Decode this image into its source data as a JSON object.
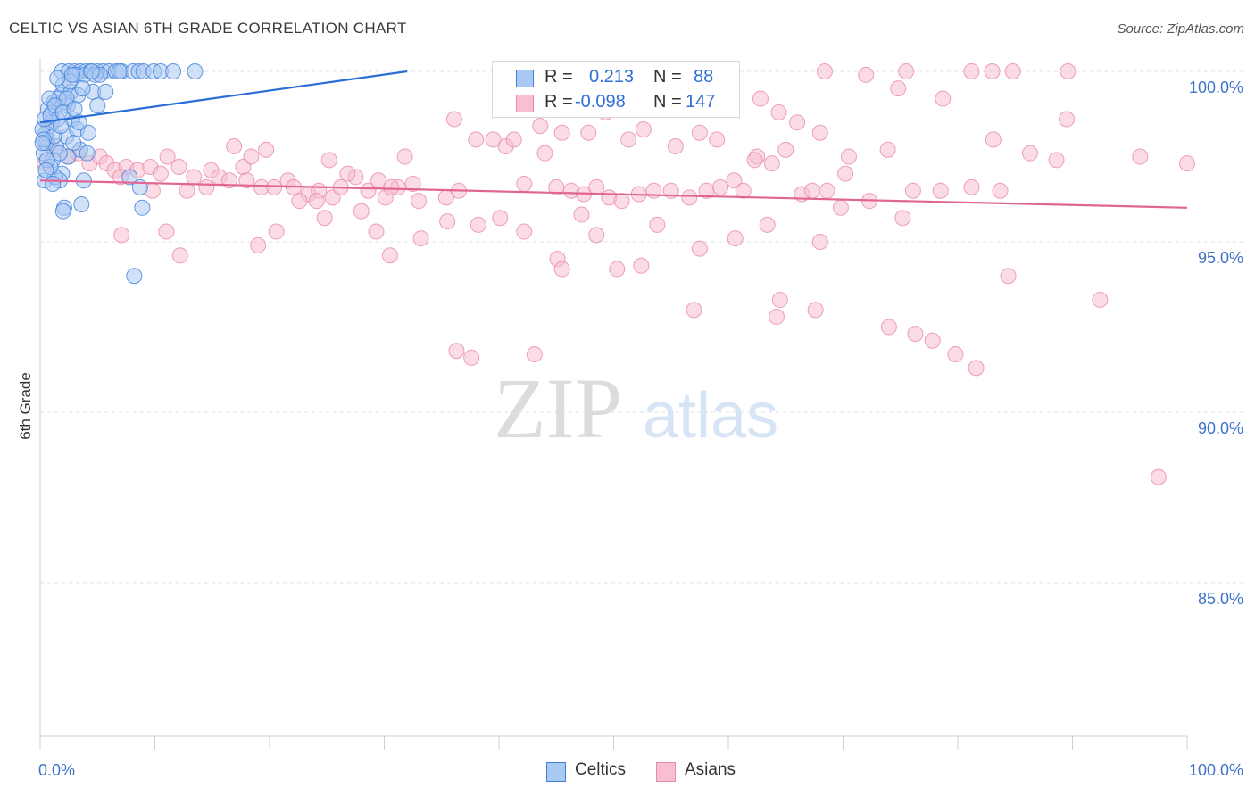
{
  "title": "CELTIC VS ASIAN 6TH GRADE CORRELATION CHART",
  "source": "Source: ZipAtlas.com",
  "watermark": {
    "zip": "ZIP",
    "atlas": "atlas"
  },
  "legend_stats": {
    "celtics": {
      "r_label": "R =",
      "r_value": "0.213",
      "n_label": "N =",
      "n_value": "88"
    },
    "asians": {
      "r_label": "R =",
      "r_value": "-0.098",
      "n_label": "N =",
      "n_value": "147"
    }
  },
  "bottom_legend": {
    "celtics": "Celtics",
    "asians": "Asians"
  },
  "colors": {
    "celtics_fill": "#a9c8f2",
    "celtics_stroke": "#3d7fd9",
    "celtics_line": "#2a6dd6",
    "asians_fill": "#f7bfd0",
    "asians_stroke": "#e889a8",
    "asians_line": "#e06593",
    "tick_text": "#3d73c9"
  },
  "chart_data": {
    "type": "scatter",
    "title": "CELTIC VS ASIAN 6TH GRADE CORRELATION CHART",
    "xlabel": "",
    "ylabel": "6th Grade",
    "xlim": [
      0,
      100
    ],
    "ylim": [
      80,
      101
    ],
    "x_ticks": [
      "0.0%",
      "100.0%"
    ],
    "y_ticks": [
      {
        "value": 100,
        "label": "100.0%"
      },
      {
        "value": 95,
        "label": "95.0%"
      },
      {
        "value": 90,
        "label": "90.0%"
      },
      {
        "value": 85,
        "label": "85.0%"
      }
    ],
    "grid": true,
    "series": [
      {
        "name": "Celtics",
        "trend": {
          "x": [
            0,
            32
          ],
          "y": [
            98.5,
            100
          ]
        },
        "points": [
          [
            0.4,
            96.8
          ],
          [
            0.6,
            98.0
          ],
          [
            0.8,
            98.4
          ],
          [
            0.3,
            97.6
          ],
          [
            0.5,
            98.2
          ],
          [
            1.0,
            98.8
          ],
          [
            1.2,
            99.1
          ],
          [
            1.5,
            98.6
          ],
          [
            1.8,
            99.3
          ],
          [
            2.0,
            99.6
          ],
          [
            2.4,
            99.0
          ],
          [
            2.7,
            99.4
          ],
          [
            1.1,
            97.4
          ],
          [
            1.4,
            97.8
          ],
          [
            1.9,
            97.0
          ],
          [
            2.3,
            98.1
          ],
          [
            2.8,
            98.6
          ],
          [
            3.2,
            98.3
          ],
          [
            3.5,
            97.7
          ],
          [
            4.2,
            98.2
          ],
          [
            4.6,
            99.4
          ],
          [
            5.0,
            99.0
          ],
          [
            5.7,
            99.4
          ],
          [
            2.1,
            96.0
          ],
          [
            1.7,
            96.8
          ],
          [
            1.3,
            96.9
          ],
          [
            0.9,
            97.2
          ],
          [
            3.6,
            96.1
          ],
          [
            3.8,
            96.8
          ],
          [
            2.0,
            95.9
          ],
          [
            7.8,
            96.9
          ],
          [
            8.7,
            96.6
          ],
          [
            8.9,
            96.0
          ],
          [
            8.2,
            94.0
          ],
          [
            1.9,
            100.0
          ],
          [
            2.5,
            100.0
          ],
          [
            3.0,
            100.0
          ],
          [
            3.5,
            100.0
          ],
          [
            4.0,
            100.0
          ],
          [
            4.4,
            100.0
          ],
          [
            5.0,
            100.0
          ],
          [
            5.5,
            100.0
          ],
          [
            6.0,
            100.0
          ],
          [
            6.6,
            100.0
          ],
          [
            7.1,
            100.0
          ],
          [
            8.1,
            100.0
          ],
          [
            8.6,
            100.0
          ],
          [
            9.0,
            100.0
          ],
          [
            9.9,
            100.0
          ],
          [
            10.5,
            100.0
          ],
          [
            11.6,
            100.0
          ],
          [
            13.5,
            100.0
          ],
          [
            3.1,
            99.9
          ],
          [
            3.9,
            99.9
          ],
          [
            4.8,
            99.9
          ],
          [
            2.2,
            99.1
          ],
          [
            2.6,
            99.7
          ],
          [
            3.3,
            99.3
          ],
          [
            0.7,
            98.9
          ],
          [
            1.6,
            99.2
          ],
          [
            0.2,
            98.3
          ],
          [
            0.5,
            97.9
          ],
          [
            1.0,
            98.5
          ],
          [
            2.9,
            97.9
          ],
          [
            4.1,
            97.6
          ],
          [
            0.8,
            99.2
          ],
          [
            1.2,
            98.1
          ],
          [
            5.2,
            99.9
          ],
          [
            6.9,
            100.0
          ],
          [
            2.8,
            99.9
          ],
          [
            3.7,
            99.5
          ],
          [
            4.5,
            100.0
          ],
          [
            1.5,
            99.8
          ],
          [
            2.3,
            99.2
          ],
          [
            0.4,
            98.6
          ],
          [
            0.6,
            97.4
          ],
          [
            1.8,
            98.4
          ],
          [
            2.4,
            97.5
          ],
          [
            0.3,
            98.0
          ],
          [
            0.9,
            98.7
          ],
          [
            1.3,
            99.0
          ],
          [
            2.0,
            98.8
          ],
          [
            3.0,
            98.9
          ],
          [
            1.1,
            96.7
          ],
          [
            0.5,
            97.1
          ],
          [
            3.4,
            98.5
          ],
          [
            0.2,
            97.9
          ],
          [
            1.7,
            97.6
          ]
        ]
      },
      {
        "name": "Asians",
        "trend": {
          "x": [
            0,
            100
          ],
          "y": [
            96.8,
            96.0
          ]
        },
        "points": [
          [
            0.4,
            97.3
          ],
          [
            1.2,
            97.7
          ],
          [
            2.5,
            97.5
          ],
          [
            3.3,
            97.6
          ],
          [
            4.3,
            97.3
          ],
          [
            5.2,
            97.5
          ],
          [
            5.8,
            97.3
          ],
          [
            6.5,
            97.1
          ],
          [
            7.5,
            97.2
          ],
          [
            8.5,
            97.1
          ],
          [
            9.6,
            97.2
          ],
          [
            10.5,
            97.0
          ],
          [
            12.1,
            97.2
          ],
          [
            13.4,
            96.9
          ],
          [
            14.9,
            97.1
          ],
          [
            15.6,
            96.9
          ],
          [
            16.5,
            96.8
          ],
          [
            17.7,
            97.2
          ],
          [
            18.0,
            96.8
          ],
          [
            19.3,
            96.6
          ],
          [
            20.4,
            96.6
          ],
          [
            21.6,
            96.8
          ],
          [
            22.1,
            96.6
          ],
          [
            23.4,
            96.4
          ],
          [
            24.3,
            96.5
          ],
          [
            25.5,
            96.3
          ],
          [
            26.2,
            96.6
          ],
          [
            27.5,
            96.9
          ],
          [
            28.6,
            96.5
          ],
          [
            29.5,
            96.8
          ],
          [
            30.1,
            96.3
          ],
          [
            31.2,
            96.6
          ],
          [
            32.5,
            96.7
          ],
          [
            7.0,
            96.9
          ],
          [
            9.8,
            96.5
          ],
          [
            11.1,
            97.5
          ],
          [
            12.8,
            96.5
          ],
          [
            14.5,
            96.6
          ],
          [
            16.9,
            97.8
          ],
          [
            18.4,
            97.5
          ],
          [
            19.7,
            97.7
          ],
          [
            22.6,
            96.2
          ],
          [
            24.1,
            96.2
          ],
          [
            25.2,
            97.4
          ],
          [
            26.8,
            97.0
          ],
          [
            30.6,
            96.6
          ],
          [
            31.8,
            97.5
          ],
          [
            33.0,
            96.2
          ],
          [
            35.4,
            96.3
          ],
          [
            36.5,
            96.5
          ],
          [
            38.0,
            98.0
          ],
          [
            39.5,
            98.0
          ],
          [
            40.6,
            97.8
          ],
          [
            42.2,
            96.7
          ],
          [
            43.6,
            98.4
          ],
          [
            45.0,
            96.6
          ],
          [
            46.3,
            96.5
          ],
          [
            47.4,
            96.4
          ],
          [
            48.5,
            96.6
          ],
          [
            49.6,
            96.3
          ],
          [
            50.7,
            96.2
          ],
          [
            52.2,
            96.4
          ],
          [
            53.5,
            96.5
          ],
          [
            55.0,
            96.5
          ],
          [
            56.6,
            96.3
          ],
          [
            58.1,
            96.5
          ],
          [
            59.3,
            96.6
          ],
          [
            60.5,
            96.8
          ],
          [
            61.3,
            96.5
          ],
          [
            62.5,
            97.5
          ],
          [
            63.8,
            97.3
          ],
          [
            65.0,
            97.7
          ],
          [
            66.4,
            96.4
          ],
          [
            67.3,
            96.5
          ],
          [
            68.6,
            96.5
          ],
          [
            69.8,
            96.0
          ],
          [
            70.2,
            97.0
          ],
          [
            72.3,
            96.2
          ],
          [
            73.9,
            97.7
          ],
          [
            76.1,
            96.5
          ],
          [
            78.5,
            96.5
          ],
          [
            81.2,
            96.6
          ],
          [
            83.7,
            96.5
          ],
          [
            36.1,
            98.6
          ],
          [
            41.3,
            98.0
          ],
          [
            44.0,
            97.6
          ],
          [
            45.5,
            98.2
          ],
          [
            47.8,
            98.2
          ],
          [
            49.3,
            98.8
          ],
          [
            51.3,
            98.0
          ],
          [
            52.6,
            98.3
          ],
          [
            55.4,
            97.8
          ],
          [
            57.5,
            98.2
          ],
          [
            59.0,
            98.0
          ],
          [
            62.3,
            97.4
          ],
          [
            64.4,
            98.8
          ],
          [
            66.0,
            98.5
          ],
          [
            68.0,
            98.2
          ],
          [
            70.5,
            97.5
          ],
          [
            74.8,
            99.5
          ],
          [
            78.7,
            99.2
          ],
          [
            83.1,
            98.0
          ],
          [
            86.3,
            97.6
          ],
          [
            88.6,
            97.4
          ],
          [
            89.5,
            98.6
          ],
          [
            95.9,
            97.5
          ],
          [
            100.0,
            97.3
          ],
          [
            75.5,
            100.0
          ],
          [
            81.2,
            100.0
          ],
          [
            83.0,
            100.0
          ],
          [
            84.8,
            100.0
          ],
          [
            89.6,
            100.0
          ],
          [
            68.4,
            100.0
          ],
          [
            72.0,
            99.9
          ],
          [
            62.8,
            99.2
          ],
          [
            7.1,
            95.2
          ],
          [
            11.0,
            95.3
          ],
          [
            12.2,
            94.6
          ],
          [
            19.0,
            94.9
          ],
          [
            20.6,
            95.3
          ],
          [
            24.8,
            95.7
          ],
          [
            28.0,
            95.9
          ],
          [
            29.3,
            95.3
          ],
          [
            30.5,
            94.6
          ],
          [
            33.2,
            95.1
          ],
          [
            35.5,
            95.6
          ],
          [
            38.2,
            95.5
          ],
          [
            40.1,
            95.7
          ],
          [
            42.2,
            95.3
          ],
          [
            45.1,
            94.5
          ],
          [
            45.5,
            94.2
          ],
          [
            47.2,
            95.8
          ],
          [
            48.5,
            95.2
          ],
          [
            50.3,
            94.2
          ],
          [
            52.4,
            94.3
          ],
          [
            53.8,
            95.5
          ],
          [
            57.5,
            94.8
          ],
          [
            60.6,
            95.1
          ],
          [
            63.4,
            95.5
          ],
          [
            64.5,
            93.3
          ],
          [
            67.6,
            93.0
          ],
          [
            74.0,
            92.5
          ],
          [
            76.3,
            92.3
          ],
          [
            77.8,
            92.1
          ],
          [
            79.8,
            91.7
          ],
          [
            81.6,
            91.3
          ],
          [
            84.4,
            94.0
          ],
          [
            92.4,
            93.3
          ],
          [
            57.0,
            93.0
          ],
          [
            64.2,
            92.8
          ],
          [
            68.0,
            95.0
          ],
          [
            75.2,
            95.7
          ],
          [
            36.3,
            91.8
          ],
          [
            37.6,
            91.6
          ],
          [
            43.1,
            91.7
          ],
          [
            97.5,
            88.1
          ]
        ]
      }
    ]
  }
}
